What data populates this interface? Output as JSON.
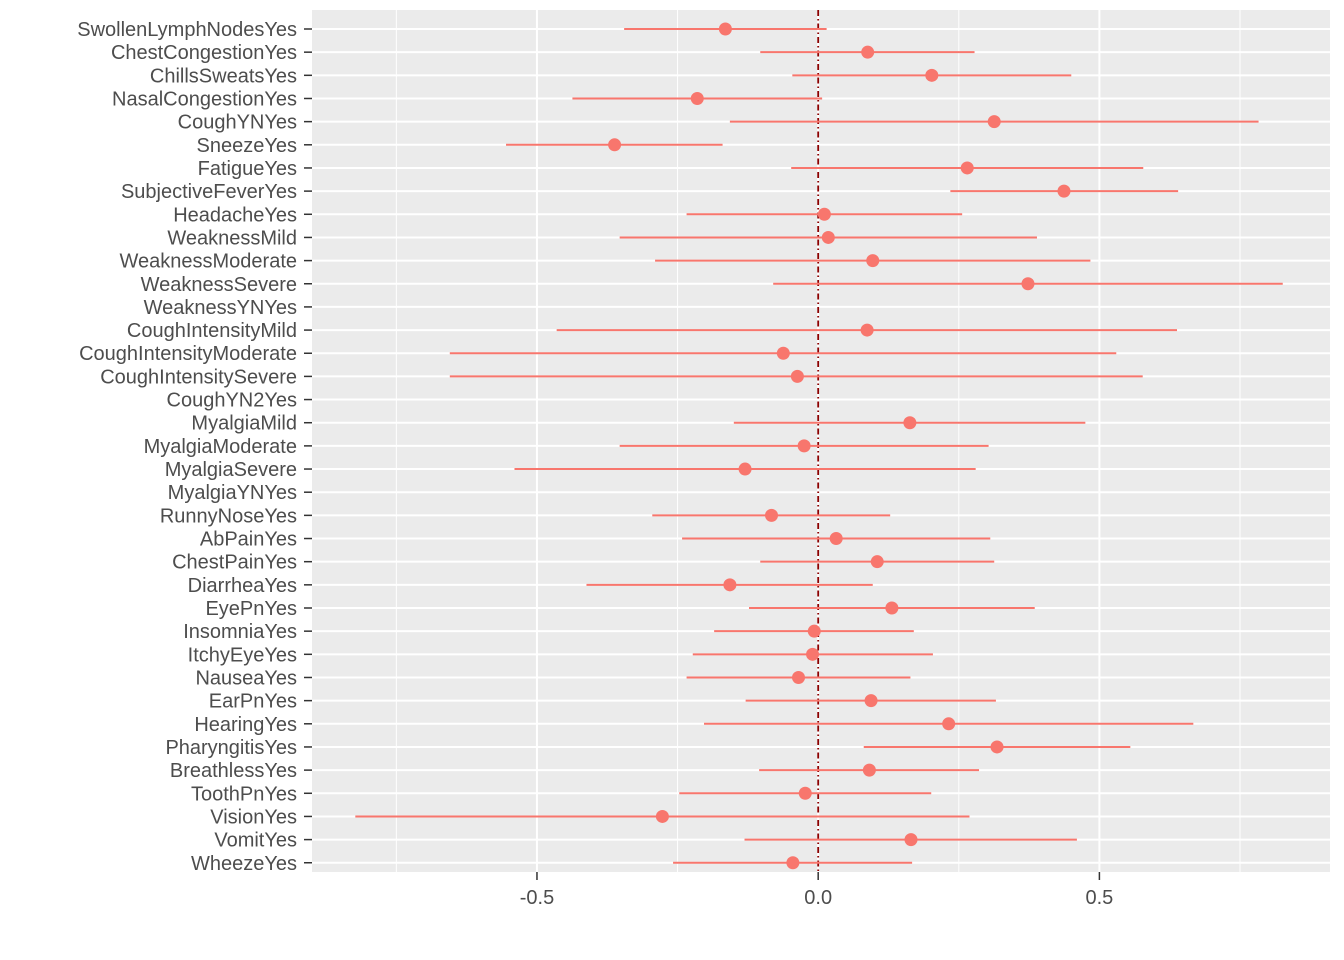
{
  "chart_data": {
    "type": "scatter",
    "subtype": "coefficient-errorbar",
    "title": "",
    "xlabel": "",
    "ylabel": "",
    "xlim": [
      -0.9,
      0.91
    ],
    "x_ticks": [
      -0.5,
      0.0,
      0.5
    ],
    "x_tick_labels": [
      "-0.5",
      "0.0",
      "0.5"
    ],
    "reference_line": {
      "x": 0,
      "style": "dot-dash",
      "color": "#8b0000"
    },
    "grid": true,
    "legend": "none",
    "colors": {
      "panel": "#ebebeb",
      "grid": "#ffffff",
      "marks": "#f8766d",
      "point": "#f8766d"
    },
    "terms": [
      {
        "term": "SwollenLymphNodesYes",
        "estimate": -0.165,
        "low": -0.345,
        "high": 0.015
      },
      {
        "term": "ChestCongestionYes",
        "estimate": 0.088,
        "low": -0.103,
        "high": 0.278
      },
      {
        "term": "ChillsSweatsYes",
        "estimate": 0.202,
        "low": -0.046,
        "high": 0.45
      },
      {
        "term": "NasalCongestionYes",
        "estimate": -0.215,
        "low": -0.437,
        "high": 0.007
      },
      {
        "term": "CoughYNYes",
        "estimate": 0.313,
        "low": -0.157,
        "high": 0.783
      },
      {
        "term": "SneezeYes",
        "estimate": -0.362,
        "low": -0.555,
        "high": -0.17
      },
      {
        "term": "FatigueYes",
        "estimate": 0.265,
        "low": -0.048,
        "high": 0.578
      },
      {
        "term": "SubjectiveFeverYes",
        "estimate": 0.437,
        "low": 0.235,
        "high": 0.64
      },
      {
        "term": "HeadacheYes",
        "estimate": 0.011,
        "low": -0.234,
        "high": 0.256
      },
      {
        "term": "WeaknessMild",
        "estimate": 0.018,
        "low": -0.353,
        "high": 0.389
      },
      {
        "term": "WeaknessModerate",
        "estimate": 0.097,
        "low": -0.29,
        "high": 0.484
      },
      {
        "term": "WeaknessSevere",
        "estimate": 0.373,
        "low": -0.08,
        "high": 0.826
      },
      {
        "term": "WeaknessYNYes",
        "estimate": null,
        "low": null,
        "high": null
      },
      {
        "term": "CoughIntensityMild",
        "estimate": 0.087,
        "low": -0.465,
        "high": 0.638
      },
      {
        "term": "CoughIntensityModerate",
        "estimate": -0.062,
        "low": -0.655,
        "high": 0.53
      },
      {
        "term": "CoughIntensitySevere",
        "estimate": -0.037,
        "low": -0.655,
        "high": 0.577
      },
      {
        "term": "CoughYN2Yes",
        "estimate": null,
        "low": null,
        "high": null
      },
      {
        "term": "MyalgiaMild",
        "estimate": 0.163,
        "low": -0.15,
        "high": 0.475
      },
      {
        "term": "MyalgiaModerate",
        "estimate": -0.025,
        "low": -0.353,
        "high": 0.303
      },
      {
        "term": "MyalgiaSevere",
        "estimate": -0.13,
        "low": -0.54,
        "high": 0.28
      },
      {
        "term": "MyalgiaYNYes",
        "estimate": null,
        "low": null,
        "high": null
      },
      {
        "term": "RunnyNoseYes",
        "estimate": -0.083,
        "low": -0.295,
        "high": 0.128
      },
      {
        "term": "AbPainYes",
        "estimate": 0.032,
        "low": -0.242,
        "high": 0.306
      },
      {
        "term": "ChestPainYes",
        "estimate": 0.105,
        "low": -0.103,
        "high": 0.313
      },
      {
        "term": "DiarrheaYes",
        "estimate": -0.157,
        "low": -0.412,
        "high": 0.097
      },
      {
        "term": "EyePnYes",
        "estimate": 0.131,
        "low": -0.123,
        "high": 0.385
      },
      {
        "term": "InsomniaYes",
        "estimate": -0.007,
        "low": -0.185,
        "high": 0.17
      },
      {
        "term": "ItchyEyeYes",
        "estimate": -0.01,
        "low": -0.223,
        "high": 0.204
      },
      {
        "term": "NauseaYes",
        "estimate": -0.035,
        "low": -0.234,
        "high": 0.164
      },
      {
        "term": "EarPnYes",
        "estimate": 0.094,
        "low": -0.129,
        "high": 0.316
      },
      {
        "term": "HearingYes",
        "estimate": 0.232,
        "low": -0.203,
        "high": 0.667
      },
      {
        "term": "PharyngitisYes",
        "estimate": 0.318,
        "low": 0.081,
        "high": 0.555
      },
      {
        "term": "BreathlessYes",
        "estimate": 0.091,
        "low": -0.105,
        "high": 0.286
      },
      {
        "term": "ToothPnYes",
        "estimate": -0.023,
        "low": -0.247,
        "high": 0.201
      },
      {
        "term": "VisionYes",
        "estimate": -0.277,
        "low": -0.823,
        "high": 0.269
      },
      {
        "term": "VomitYes",
        "estimate": 0.165,
        "low": -0.131,
        "high": 0.46
      },
      {
        "term": "WheezeYes",
        "estimate": -0.045,
        "low": -0.258,
        "high": 0.167
      }
    ]
  }
}
